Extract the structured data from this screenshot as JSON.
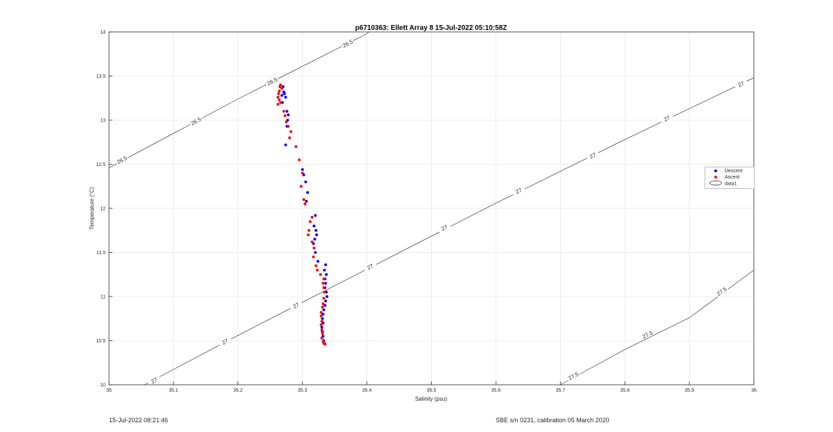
{
  "chart_data": {
    "type": "scatter",
    "title": "p6710363: Ellett Array 8 15-Jul-2022 05:10:58Z",
    "xlabel": "Salinity (psu)",
    "ylabel": "Temperature (°C)",
    "xlim": [
      35,
      36
    ],
    "ylim": [
      10,
      14
    ],
    "xticks": [
      "35",
      "35.1",
      "35.2",
      "35.3",
      "35.4",
      "35.5",
      "35.6",
      "35.7",
      "35.8",
      "35.9",
      "36"
    ],
    "yticks": [
      "10",
      "10.5",
      "11",
      "11.5",
      "12",
      "12.5",
      "13",
      "13.5",
      "14"
    ],
    "grid": true,
    "legend_position": "right",
    "series": [
      {
        "name": "Descent",
        "color": "#0000ff",
        "points": [
          [
            35.27,
            13.38
          ],
          [
            35.271,
            13.32
          ],
          [
            35.272,
            13.3
          ],
          [
            35.268,
            13.28
          ],
          [
            35.274,
            13.26
          ],
          [
            35.269,
            13.2
          ],
          [
            35.276,
            13.1
          ],
          [
            35.278,
            13.06
          ],
          [
            35.277,
            13.0
          ],
          [
            35.276,
            12.93
          ],
          [
            35.274,
            12.72
          ],
          [
            35.3,
            12.44
          ],
          [
            35.302,
            12.38
          ],
          [
            35.305,
            12.3
          ],
          [
            35.308,
            12.18
          ],
          [
            35.306,
            12.08
          ],
          [
            35.32,
            11.92
          ],
          [
            35.318,
            11.8
          ],
          [
            35.321,
            11.75
          ],
          [
            35.322,
            11.7
          ],
          [
            35.319,
            11.65
          ],
          [
            35.317,
            11.6
          ],
          [
            35.32,
            11.5
          ],
          [
            35.324,
            11.4
          ],
          [
            35.336,
            11.36
          ],
          [
            35.334,
            11.3
          ],
          [
            35.337,
            11.25
          ],
          [
            35.335,
            11.2
          ],
          [
            35.336,
            11.15
          ],
          [
            35.335,
            11.1
          ],
          [
            35.337,
            11.05
          ],
          [
            35.338,
            11.0
          ],
          [
            35.336,
            10.95
          ],
          [
            35.335,
            10.9
          ],
          [
            35.333,
            10.85
          ],
          [
            35.332,
            10.8
          ],
          [
            35.331,
            10.75
          ],
          [
            35.332,
            10.7
          ],
          [
            35.33,
            10.65
          ],
          [
            35.331,
            10.6
          ],
          [
            35.332,
            10.55
          ],
          [
            35.333,
            10.5
          ],
          [
            35.334,
            10.47
          ]
        ]
      },
      {
        "name": "Ascent",
        "color": "#ff0000",
        "points": [
          [
            35.266,
            13.4
          ],
          [
            35.265,
            13.38
          ],
          [
            35.268,
            13.36
          ],
          [
            35.264,
            13.33
          ],
          [
            35.263,
            13.3
          ],
          [
            35.262,
            13.26
          ],
          [
            35.264,
            13.23
          ],
          [
            35.266,
            13.2
          ],
          [
            35.262,
            13.18
          ],
          [
            35.271,
            13.1
          ],
          [
            35.273,
            13.05
          ],
          [
            35.275,
            12.98
          ],
          [
            35.278,
            12.93
          ],
          [
            35.282,
            12.87
          ],
          [
            35.28,
            12.8
          ],
          [
            35.29,
            12.7
          ],
          [
            35.295,
            12.55
          ],
          [
            35.3,
            12.4
          ],
          [
            35.298,
            12.25
          ],
          [
            35.302,
            12.1
          ],
          [
            35.304,
            12.05
          ],
          [
            35.315,
            11.9
          ],
          [
            35.312,
            11.85
          ],
          [
            35.31,
            11.75
          ],
          [
            35.309,
            11.7
          ],
          [
            35.315,
            11.62
          ],
          [
            35.318,
            11.55
          ],
          [
            35.317,
            11.45
          ],
          [
            35.321,
            11.35
          ],
          [
            35.323,
            11.3
          ],
          [
            35.328,
            11.25
          ],
          [
            35.333,
            11.2
          ],
          [
            35.332,
            11.15
          ],
          [
            35.333,
            11.1
          ],
          [
            35.334,
            11.05
          ],
          [
            35.333,
            10.98
          ],
          [
            35.332,
            10.92
          ],
          [
            35.331,
            10.88
          ],
          [
            35.329,
            10.82
          ],
          [
            35.329,
            10.78
          ],
          [
            35.33,
            10.72
          ],
          [
            35.329,
            10.68
          ],
          [
            35.33,
            10.62
          ],
          [
            35.331,
            10.58
          ],
          [
            35.33,
            10.53
          ],
          [
            35.332,
            10.49
          ],
          [
            35.333,
            10.47
          ],
          [
            35.335,
            10.46
          ]
        ]
      }
    ],
    "legend_entries": [
      "Descent",
      "Ascent",
      "data1"
    ],
    "contours": [
      {
        "label": "26.5",
        "points": [
          [
            35.0,
            12.46
          ],
          [
            35.2,
            13.24
          ],
          [
            35.4,
            13.98
          ],
          [
            35.403,
            14.0
          ]
        ],
        "labels_at": [
          [
            35.02,
            12.55
          ],
          [
            35.135,
            12.99
          ],
          [
            35.253,
            13.44
          ],
          [
            35.37,
            13.87
          ]
        ]
      },
      {
        "label": "27",
        "points": [
          [
            35.055,
            10.0
          ],
          [
            35.2,
            10.56
          ],
          [
            35.4,
            11.31
          ],
          [
            35.6,
            12.06
          ],
          [
            35.8,
            12.78
          ],
          [
            36.0,
            13.48
          ]
        ],
        "labels_at": [
          [
            35.07,
            10.05
          ],
          [
            35.18,
            10.49
          ],
          [
            35.29,
            10.9
          ],
          [
            35.405,
            11.34
          ],
          [
            35.52,
            11.78
          ],
          [
            35.635,
            12.2
          ],
          [
            35.75,
            12.6
          ],
          [
            35.865,
            13.02
          ],
          [
            35.98,
            13.41
          ]
        ]
      },
      {
        "label": "27.5",
        "points": [
          [
            35.7,
            10.0
          ],
          [
            35.8,
            10.4
          ],
          [
            35.9,
            10.76
          ],
          [
            36.0,
            11.3
          ]
        ],
        "labels_at": [
          [
            35.72,
            10.1
          ],
          [
            35.835,
            10.57
          ],
          [
            35.95,
            11.06
          ]
        ]
      }
    ]
  },
  "footer": {
    "timestamp": "15-Jul-2022 08:21:46",
    "calibration": "SBE s/n 0231, calibration 05 March 2020"
  }
}
